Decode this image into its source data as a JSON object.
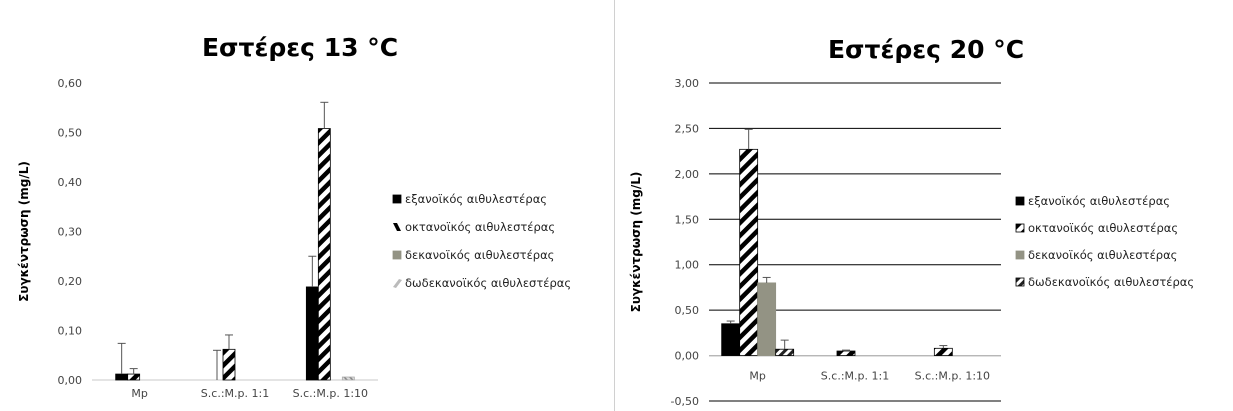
{
  "chart_data": [
    {
      "type": "bar",
      "title": "Εστέρες 13 °C",
      "ylabel": "Συγκέντρωση  (mg/L)",
      "categories": [
        "Mp",
        "S.c.:M.p. 1:1",
        "S.c.:M.p. 1:10"
      ],
      "ylim": [
        0,
        0.6
      ],
      "yticks": [
        "0,00",
        "0,10",
        "0,20",
        "0,30",
        "0,40",
        "0,50",
        "0,60"
      ],
      "yticks_values": [
        0,
        0.1,
        0.2,
        0.3,
        0.4,
        0.5,
        0.6
      ],
      "grid": false,
      "legend_position": "right",
      "series": [
        {
          "name": "εξανοϊκός αιθυλεστέρας",
          "pattern": "solid-black",
          "values": [
            0.012,
            0.0,
            0.188
          ],
          "errors": [
            0.062,
            0.06,
            0.062
          ]
        },
        {
          "name": "οκτανοϊκός αιθυλεστέρας",
          "pattern": "diag-thick",
          "values": [
            0.012,
            0.062,
            0.508
          ],
          "errors": [
            0.011,
            0.029,
            0.053
          ]
        },
        {
          "name": "δεκανοϊκός αιθυλεστέρας",
          "pattern": "solid-gray",
          "values": [
            0.0,
            0.0,
            0.0
          ],
          "errors": [
            0,
            0,
            0
          ]
        },
        {
          "name": "δωδεκανοϊκός αιθυλεστέρας",
          "pattern": "light-diag",
          "values": [
            0.0,
            0.0,
            0.006
          ],
          "errors": [
            0,
            0,
            0
          ]
        }
      ]
    },
    {
      "type": "bar",
      "title": "Εστέρες 20 °C",
      "ylabel": "Συγκέντρωση  (mg/L)",
      "categories": [
        "Mp",
        "S.c.:M.p. 1:1",
        "S.c.:M.p. 1:10"
      ],
      "ylim": [
        -0.5,
        3.0
      ],
      "yticks": [
        "-0,50",
        "0,00",
        "0,50",
        "1,00",
        "1,50",
        "2,00",
        "2,50",
        "3,00"
      ],
      "yticks_values": [
        -0.5,
        0,
        0.5,
        1.0,
        1.5,
        2.0,
        2.5,
        3.0
      ],
      "grid": true,
      "legend_position": "right",
      "series": [
        {
          "name": "εξανοϊκός αιθυλεστέρας",
          "pattern": "solid-black",
          "values": [
            0.35,
            0.0,
            0.0
          ],
          "errors": [
            0.03,
            0,
            0
          ]
        },
        {
          "name": "οκτανοϊκός αιθυλεστέρας",
          "pattern": "diag-thick",
          "values": [
            2.27,
            0.05,
            0.08
          ],
          "errors": [
            0.22,
            0.01,
            0.03
          ]
        },
        {
          "name": "δεκανοϊκός αιθυλεστέρας",
          "pattern": "solid-gray",
          "values": [
            0.8,
            0.0,
            0.0
          ],
          "errors": [
            0.06,
            0,
            0
          ]
        },
        {
          "name": "δωδεκανοϊκός αιθυλεστέρας",
          "pattern": "diag-box",
          "values": [
            0.07,
            0.0,
            0.0
          ],
          "errors": [
            0.1,
            0,
            0
          ]
        }
      ]
    }
  ]
}
